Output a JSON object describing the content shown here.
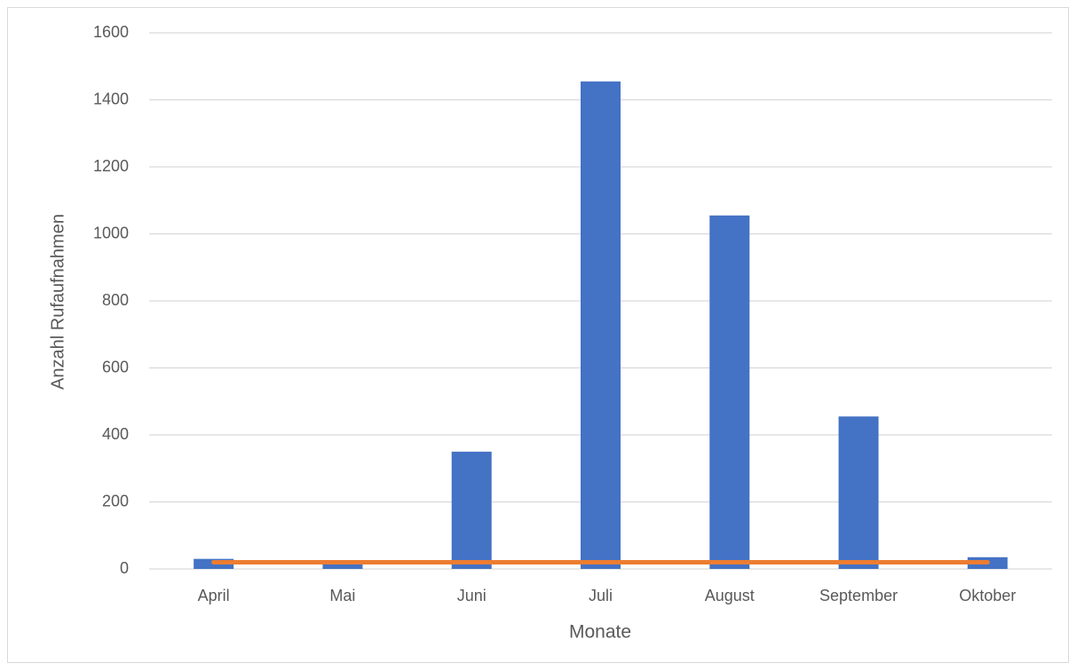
{
  "chart_data": {
    "type": "bar",
    "categories": [
      "April",
      "Mai",
      "Juni",
      "Juli",
      "August",
      "September",
      "Oktober"
    ],
    "series": [
      {
        "type": "bar",
        "color": "#4472c4",
        "values": [
          30,
          15,
          350,
          1455,
          1055,
          455,
          35
        ]
      },
      {
        "type": "line",
        "color": "#ed7d31",
        "values": [
          20,
          20,
          20,
          20,
          20,
          20,
          20
        ]
      }
    ],
    "ylim": [
      0,
      1600
    ],
    "yticks": [
      0,
      200,
      400,
      600,
      800,
      1000,
      1200,
      1400,
      1600
    ],
    "grid": true,
    "xlabel": "Monate",
    "ylabel": "Anzahl Rufaufnahmen"
  }
}
